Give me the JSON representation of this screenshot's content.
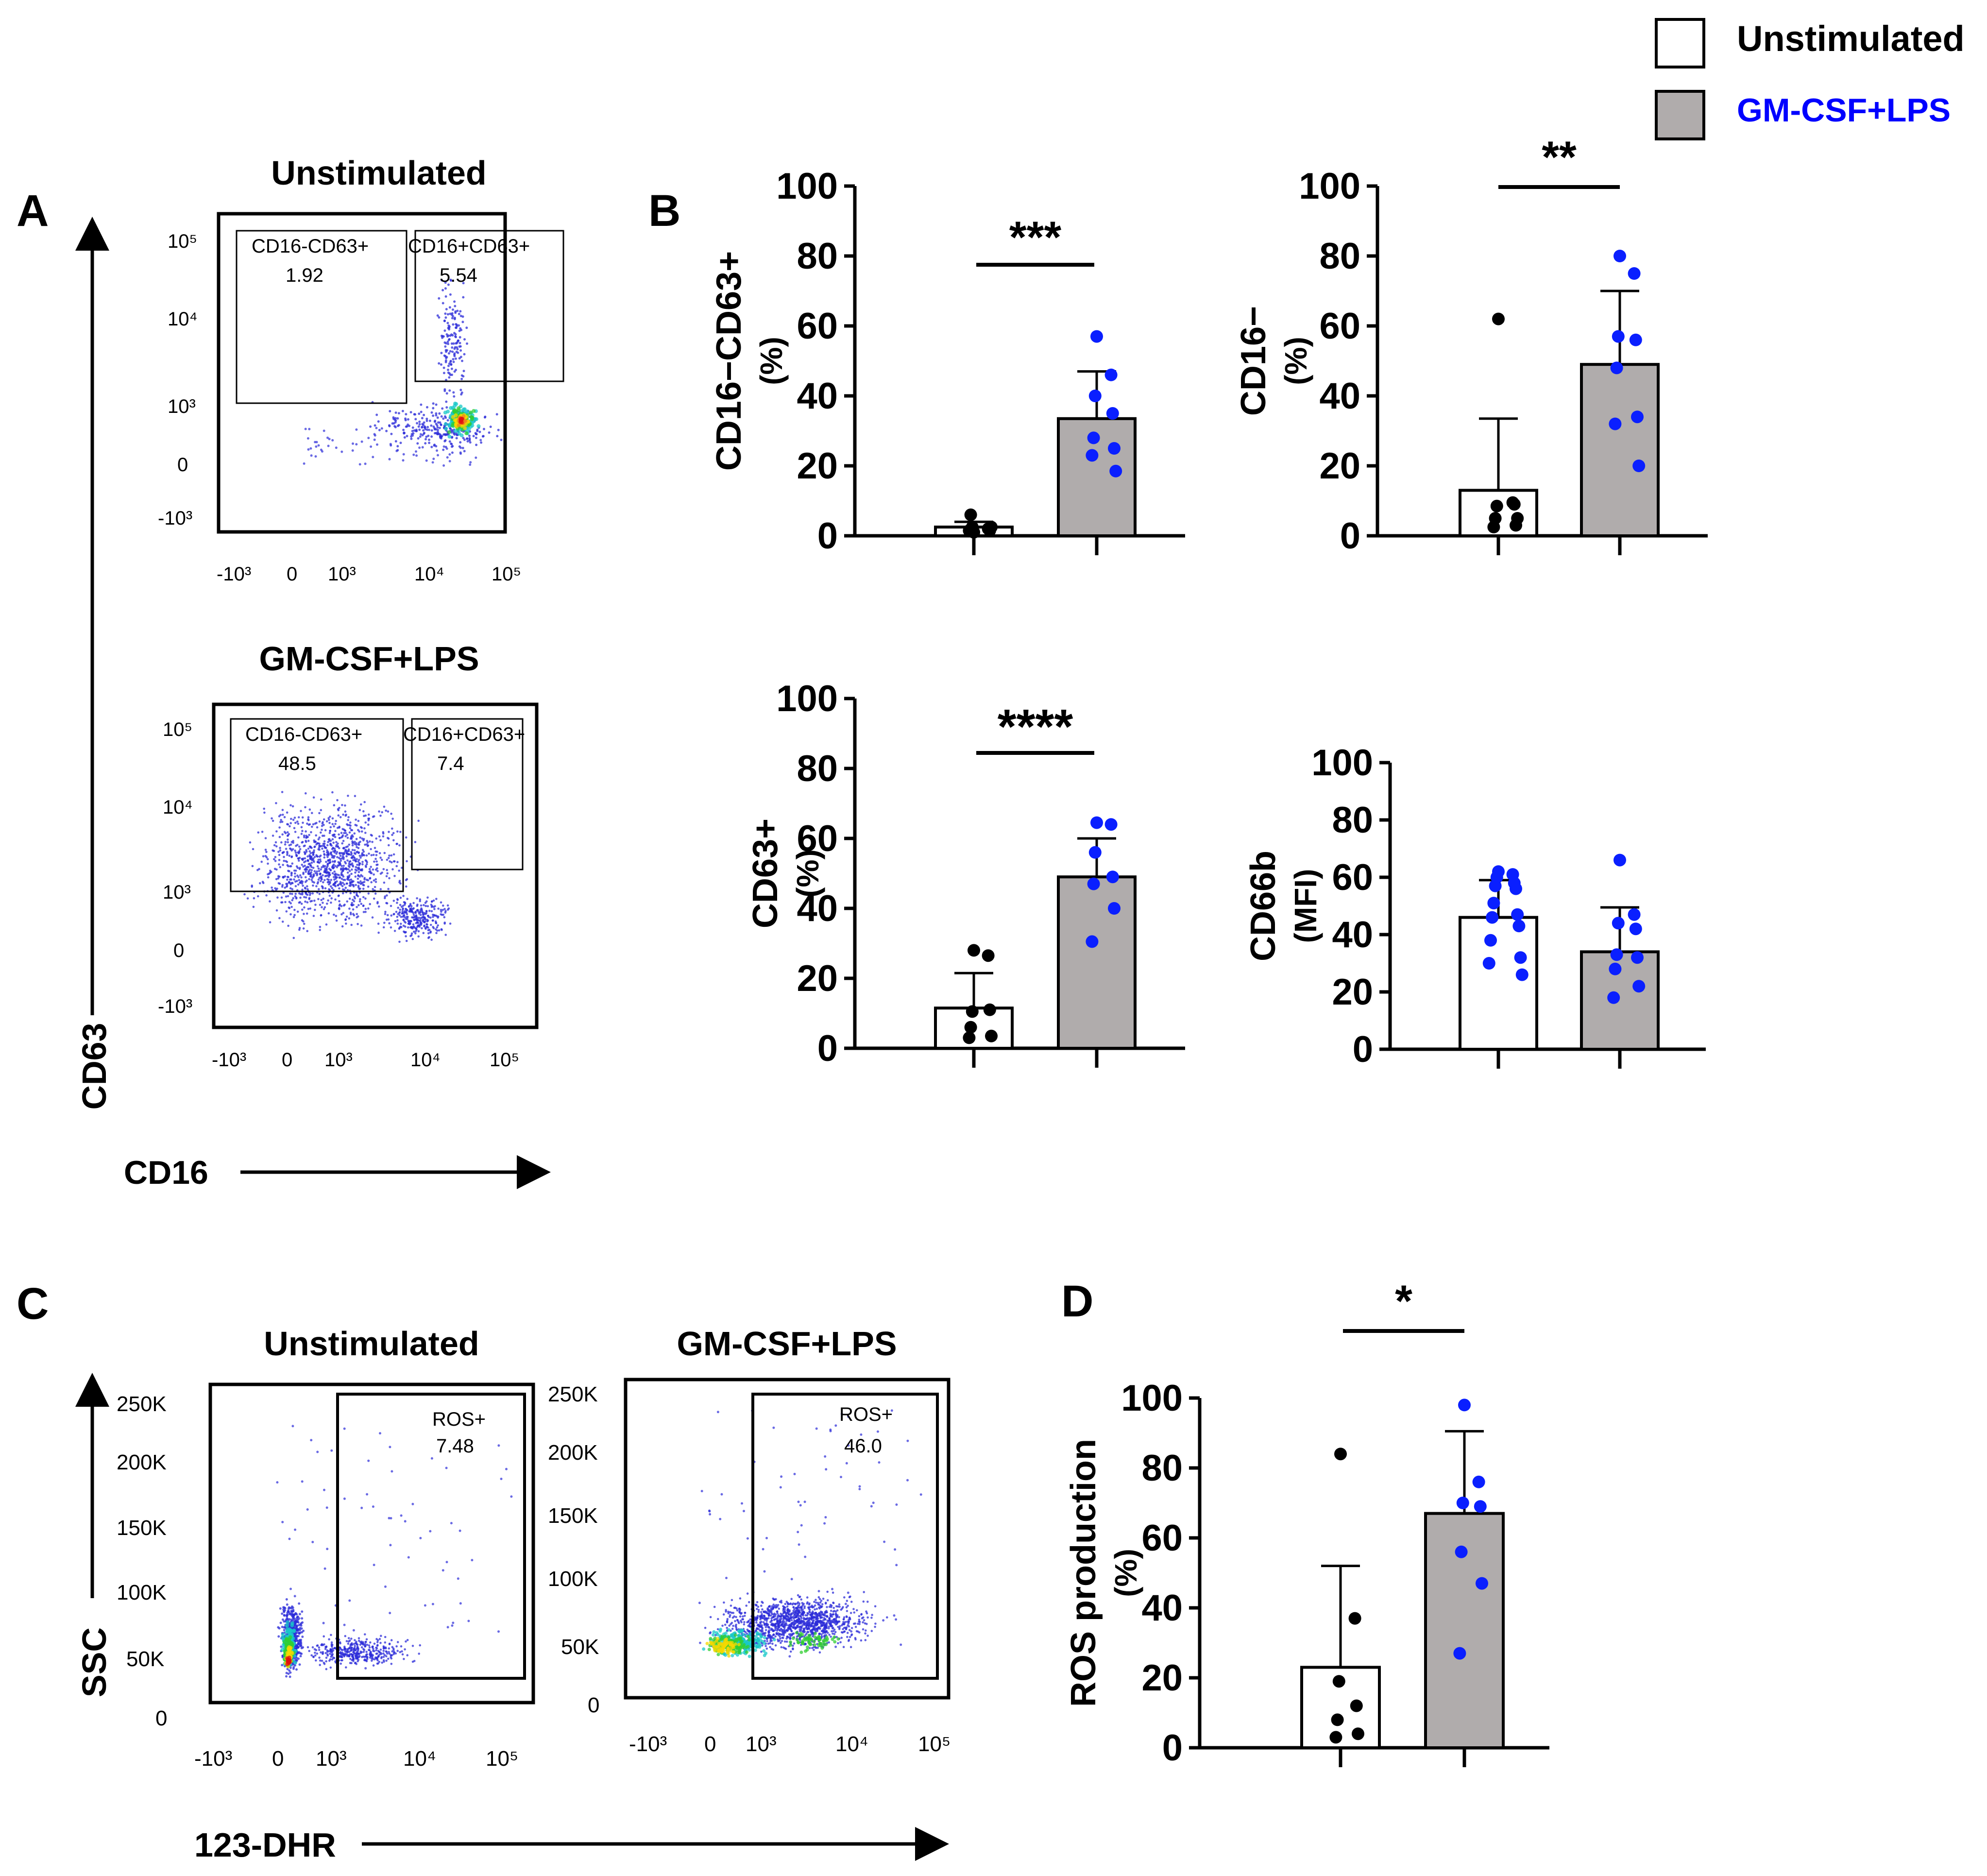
{
  "legend": {
    "items": [
      {
        "label": "Unstimulated",
        "fill": "#ffffff",
        "text_color": "#000000"
      },
      {
        "label": "GM-CSF+LPS",
        "fill": "#b0acac",
        "text_color": "#0000ff"
      }
    ]
  },
  "colors": {
    "stim_dot": "#0a1fff",
    "unstim_dot": "#000000",
    "bar_gray": "#b0acac",
    "flow_low": "#2b2bd8"
  },
  "panels": {
    "A": "A",
    "B": "B",
    "C": "C",
    "D": "D"
  },
  "panel_A": {
    "y_axis_label": "CD63",
    "x_axis_label": "CD16",
    "x_ticks": [
      "-10³",
      "0",
      "10³",
      "10⁴",
      "10⁵"
    ],
    "y_ticks": [
      "10⁵",
      "10⁴",
      "10³",
      "0",
      "-10³"
    ],
    "plots": [
      {
        "title": "Unstimulated",
        "gates": [
          {
            "name": "CD16-CD63+",
            "value": "1.92"
          },
          {
            "name": "CD16+CD63+",
            "value": "5.54"
          }
        ]
      },
      {
        "title": "GM-CSF+LPS",
        "gates": [
          {
            "name": "CD16-CD63+",
            "value": "48.5"
          },
          {
            "name": "CD16+CD63+",
            "value": "7.4"
          }
        ]
      }
    ]
  },
  "panel_C": {
    "y_axis_label": "SSC",
    "x_axis_label": "123-DHR",
    "x_ticks": [
      "-10³",
      "0",
      "10³",
      "10⁴",
      "10⁵"
    ],
    "y_ticks": [
      "250K",
      "200K",
      "150K",
      "100K",
      "50K",
      "0"
    ],
    "plots": [
      {
        "title": "Unstimulated",
        "gate": {
          "name": "ROS+",
          "value": "7.48"
        }
      },
      {
        "title": "GM-CSF+LPS",
        "gate": {
          "name": "ROS+",
          "value": "46.0"
        }
      }
    ]
  },
  "chart_data": [
    {
      "type": "bar",
      "id": "B1",
      "ylabel": "CD16−CD63+",
      "ylabel2": "(%)",
      "categories": [
        "Unstimulated",
        "GM-CSF+LPS"
      ],
      "values": [
        2.5,
        33.5
      ],
      "errors": [
        1.5,
        13.5
      ],
      "ylim": [
        0,
        100
      ],
      "yticks": [
        "0",
        "20",
        "40",
        "60",
        "80",
        "100"
      ],
      "points": [
        [
          1,
          2,
          2.5,
          1.5,
          6,
          2.5,
          1.5
        ],
        [
          57,
          46,
          40,
          35,
          28,
          25,
          23,
          18.5
        ]
      ],
      "significance": "***"
    },
    {
      "type": "bar",
      "id": "B2",
      "ylabel": "CD16−",
      "ylabel2": "(%)",
      "categories": [
        "Unstimulated",
        "GM-CSF+LPS"
      ],
      "values": [
        13,
        49
      ],
      "errors": [
        20.5,
        21
      ],
      "ylim": [
        0,
        100
      ],
      "yticks": [
        "0",
        "20",
        "40",
        "60",
        "80",
        "100"
      ],
      "points": [
        [
          62,
          9.5,
          8.5,
          9,
          5,
          3,
          2.5,
          5
        ],
        [
          80,
          75,
          57,
          56,
          48,
          34,
          32,
          20
        ]
      ],
      "significance": "**"
    },
    {
      "type": "bar",
      "id": "B3",
      "ylabel": "CD63+",
      "ylabel2": "(%)",
      "categories": [
        "Unstimulated",
        "GM-CSF+LPS"
      ],
      "values": [
        11.5,
        49
      ],
      "errors": [
        10,
        11
      ],
      "ylim": [
        0,
        100
      ],
      "yticks": [
        "0",
        "20",
        "40",
        "60",
        "80",
        "100"
      ],
      "points": [
        [
          28,
          26.5,
          10.5,
          11,
          6,
          3.5,
          3
        ],
        [
          64.5,
          64,
          56,
          49,
          47,
          40,
          30.5
        ]
      ],
      "significance": "****"
    },
    {
      "type": "bar",
      "id": "B4",
      "ylabel": "CD66b",
      "ylabel2": "(MFI)",
      "categories": [
        "Unstimulated",
        "GM-CSF+LPS"
      ],
      "values": [
        46,
        34
      ],
      "errors": [
        13,
        15.5
      ],
      "ylim": [
        0,
        100
      ],
      "yticks": [
        "0",
        "20",
        "40",
        "60",
        "80",
        "100"
      ],
      "points": [
        [
          62,
          61,
          60,
          58,
          57,
          56,
          51,
          47,
          46,
          43,
          38,
          32,
          30,
          26
        ],
        [
          66,
          47,
          44,
          42,
          33,
          32,
          28,
          22,
          18
        ]
      ],
      "significance": ""
    },
    {
      "type": "bar",
      "id": "D",
      "ylabel": "ROS production",
      "ylabel2": "(%)",
      "categories": [
        "Unstimulated",
        "GM-CSF+LPS"
      ],
      "values": [
        23,
        67
      ],
      "errors": [
        29,
        23.5
      ],
      "ylim": [
        0,
        100
      ],
      "yticks": [
        "0",
        "20",
        "40",
        "60",
        "80",
        "100"
      ],
      "points": [
        [
          84,
          37,
          19,
          12,
          8,
          4,
          3
        ],
        [
          98,
          76,
          70,
          69,
          56,
          47,
          27
        ]
      ],
      "significance": "*"
    }
  ]
}
